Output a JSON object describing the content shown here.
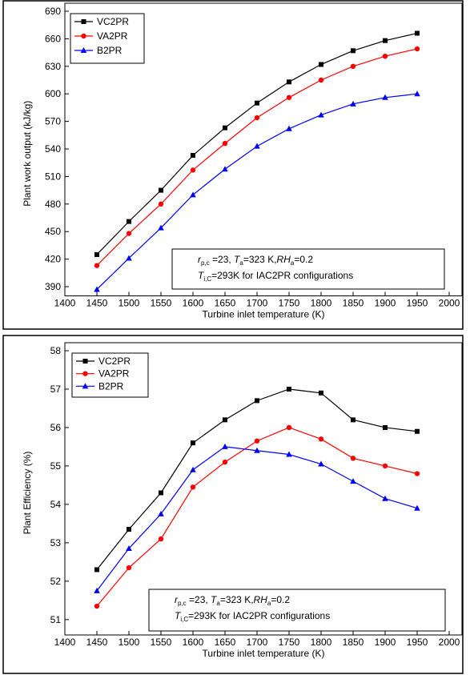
{
  "chart_data": [
    {
      "type": "line",
      "x_label": "Turbine inlet temperature (K)",
      "y_label": "Plant work output (kJ/kg)",
      "x": [
        1450,
        1500,
        1550,
        1600,
        1650,
        1700,
        1750,
        1800,
        1850,
        1900,
        1950
      ],
      "xlim": [
        1400,
        2000
      ],
      "xticks": [
        1400,
        1450,
        1500,
        1550,
        1600,
        1650,
        1700,
        1750,
        1800,
        1850,
        1900,
        1950,
        2000
      ],
      "ylim": [
        380,
        690
      ],
      "yticks": [
        390,
        420,
        450,
        480,
        510,
        540,
        570,
        600,
        630,
        660,
        690
      ],
      "legend": "upper left",
      "series": [
        {
          "name": "VC2PR",
          "color": "#000000",
          "marker": "square",
          "values": [
            425,
            461,
            495,
            533,
            563,
            590,
            613,
            632,
            647,
            658,
            666
          ]
        },
        {
          "name": "VA2PR",
          "color": "#ff0000",
          "marker": "circle",
          "values": [
            413,
            448,
            480,
            517,
            546,
            574,
            596,
            615,
            630,
            641,
            649
          ]
        },
        {
          "name": "B2PR",
          "color": "#0000ff",
          "marker": "triangle",
          "values": [
            387,
            421,
            454,
            490,
            518,
            543,
            562,
            577,
            589,
            596,
            600
          ]
        }
      ],
      "annotation": [
        [
          {
            "text": "r",
            "italic": true
          },
          {
            "text": "p,c",
            "sub": true
          },
          {
            "text": " =23, "
          },
          {
            "text": "T",
            "italic": true
          },
          {
            "text": "a",
            "sub": true
          },
          {
            "text": "=323 K,"
          },
          {
            "text": "RH",
            "italic": true
          },
          {
            "text": "a",
            "sub": true
          },
          {
            "text": "=0.2"
          }
        ],
        [
          {
            "text": "T",
            "italic": true
          },
          {
            "text": "i,C",
            "sub": true
          },
          {
            "text": "=293K for IAC2PR configurations"
          }
        ]
      ]
    },
    {
      "type": "line",
      "x_label": "Turbine inlet temperature (K)",
      "y_label": "Plant Efficiency (%)",
      "x": [
        1450,
        1500,
        1550,
        1600,
        1650,
        1700,
        1750,
        1800,
        1850,
        1900,
        1950
      ],
      "xlim": [
        1400,
        2000
      ],
      "xticks": [
        1400,
        1450,
        1500,
        1550,
        1600,
        1650,
        1700,
        1750,
        1800,
        1850,
        1900,
        1950,
        2000
      ],
      "ylim": [
        50.6,
        58
      ],
      "yticks": [
        51,
        52,
        53,
        54,
        55,
        56,
        57,
        58
      ],
      "legend": "upper left",
      "series": [
        {
          "name": "VC2PR",
          "color": "#000000",
          "marker": "square",
          "values": [
            52.3,
            53.35,
            54.3,
            55.6,
            56.2,
            56.7,
            57.0,
            56.9,
            56.2,
            56.0,
            55.9
          ]
        },
        {
          "name": "VA2PR",
          "color": "#ff0000",
          "marker": "circle",
          "values": [
            51.35,
            52.35,
            53.1,
            54.45,
            55.1,
            55.65,
            56.0,
            55.7,
            55.2,
            55.0,
            54.8
          ]
        },
        {
          "name": "B2PR",
          "color": "#0000ff",
          "marker": "triangle",
          "values": [
            51.75,
            52.85,
            53.75,
            54.9,
            55.5,
            55.4,
            55.3,
            55.05,
            54.6,
            54.15,
            53.9
          ]
        }
      ],
      "annotation": [
        [
          {
            "text": "r",
            "italic": true
          },
          {
            "text": "p,c",
            "sub": true
          },
          {
            "text": " =23, "
          },
          {
            "text": "T",
            "italic": true
          },
          {
            "text": "a",
            "sub": true
          },
          {
            "text": "=323 K,"
          },
          {
            "text": "RH",
            "italic": true
          },
          {
            "text": "a",
            "sub": true
          },
          {
            "text": "=0.2"
          }
        ],
        [
          {
            "text": "T",
            "italic": true
          },
          {
            "text": "i,C",
            "sub": true
          },
          {
            "text": "=293K for IAC2PR configurations"
          }
        ]
      ]
    }
  ]
}
